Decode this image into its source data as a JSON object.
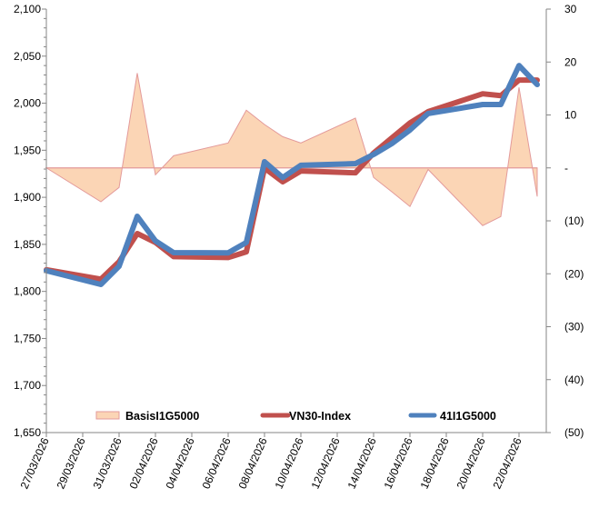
{
  "chart_data": {
    "type": "line",
    "title": "",
    "legend_position": "bottom-inside",
    "grid": false,
    "x": [
      "27/03/2026",
      "30/03/2026",
      "31/03/2026",
      "01/04/2026",
      "02/04/2026",
      "03/04/2026",
      "06/04/2026",
      "07/04/2026",
      "08/04/2026",
      "09/04/2026",
      "10/04/2026",
      "13/04/2026",
      "14/04/2026",
      "15/04/2026",
      "16/04/2026",
      "17/04/2026",
      "20/04/2026",
      "21/04/2026",
      "22/04/2026",
      "23/04/2026"
    ],
    "x_tick_labels": [
      "27/03/2026",
      "29/03/2026",
      "31/03/2026",
      "02/04/2026",
      "04/04/2026",
      "06/04/2026",
      "08/04/2026",
      "10/04/2026",
      "12/04/2026",
      "14/04/2026",
      "16/04/2026",
      "18/04/2026",
      "20/04/2026",
      "22/04/2026"
    ],
    "y_left": {
      "range": [
        1650,
        2100
      ],
      "ticks": [
        "1,650",
        "1,700",
        "1,750",
        "1,800",
        "1,850",
        "1,900",
        "1,950",
        "2,000",
        "2,050",
        "2,100"
      ]
    },
    "y_right": {
      "range": [
        -50,
        30
      ],
      "ticks": [
        "(50)",
        "(40)",
        "(30)",
        "(20)",
        "(10)",
        "-",
        "10",
        "20",
        "30"
      ]
    },
    "series": [
      {
        "name": "BasisI1G5000",
        "type": "area",
        "axis": "right",
        "color": "#fbd5b5",
        "stroke": "#e39a9a",
        "values": [
          0,
          -6.4,
          -3.7,
          17.9,
          -1.3,
          2.3,
          4.7,
          10.9,
          8.2,
          5.9,
          4.7,
          9.4,
          -1.8,
          -4.5,
          -7.3,
          -0.3,
          -10.9,
          -9.2,
          15.2,
          -5.4
        ]
      },
      {
        "name": "VN30-Index",
        "type": "line",
        "axis": "left",
        "color": "#c0504d",
        "values": [
          1823,
          1813,
          1831.5,
          1861.5,
          1852,
          1837,
          1836,
          1842,
          1931,
          1916.5,
          1928,
          1926,
          1947,
          1963,
          1979,
          1991,
          2010,
          2008,
          2024.6,
          2024.6
        ]
      },
      {
        "name": "41I1G5000",
        "type": "line",
        "axis": "left",
        "color": "#4f81bd",
        "values": [
          1822,
          1807.4,
          1826.7,
          1879.8,
          1853.7,
          1841.2,
          1841,
          1852,
          1937.8,
          1921,
          1934,
          1935.8,
          1945.5,
          1957,
          1971.5,
          1989,
          1998.6,
          1998.6,
          2040,
          2019.8
        ]
      }
    ]
  }
}
